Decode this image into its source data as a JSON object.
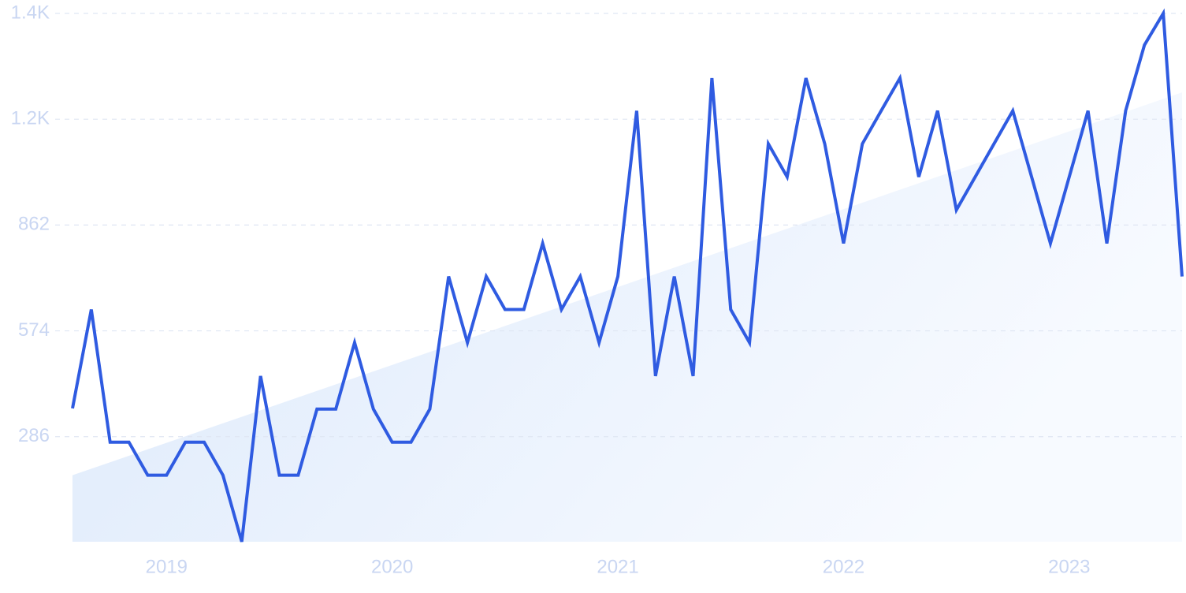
{
  "chart_data": {
    "type": "line",
    "categories": [
      null,
      null,
      null,
      null,
      null,
      "2019",
      null,
      null,
      null,
      null,
      null,
      null,
      null,
      null,
      null,
      null,
      null,
      "2020",
      null,
      null,
      null,
      null,
      null,
      null,
      null,
      null,
      null,
      null,
      null,
      "2021",
      null,
      null,
      null,
      null,
      null,
      null,
      null,
      null,
      null,
      null,
      null,
      "2022",
      null,
      null,
      null,
      null,
      null,
      null,
      null,
      null,
      null,
      null,
      null,
      "2023",
      null,
      null,
      null,
      null,
      null,
      null
    ],
    "series": [
      {
        "color": "#2f5be1",
        "values": [
          363,
          632,
          271,
          271,
          181,
          181,
          271,
          271,
          181,
          0,
          451,
          181,
          181,
          361,
          361,
          542,
          361,
          271,
          271,
          361,
          722,
          542,
          722,
          632,
          632,
          812,
          632,
          722,
          542,
          722,
          1173,
          451,
          722,
          451,
          1262,
          632,
          542,
          1083,
          993,
          1262,
          1083,
          812,
          1083,
          1173,
          1262,
          993,
          1173,
          903,
          993,
          1083,
          1173,
          993,
          812,
          993,
          1173,
          812,
          1173,
          1352,
          1438,
          722
        ]
      }
    ],
    "trendline": [
      181,
      1223
    ],
    "ylim": [
      0,
      1438
    ],
    "yticks": [
      286,
      574,
      862,
      {
        "value": 1150,
        "label": "1.2K"
      },
      {
        "value": 1438,
        "label": "1.4K"
      }
    ],
    "grid": true
  }
}
